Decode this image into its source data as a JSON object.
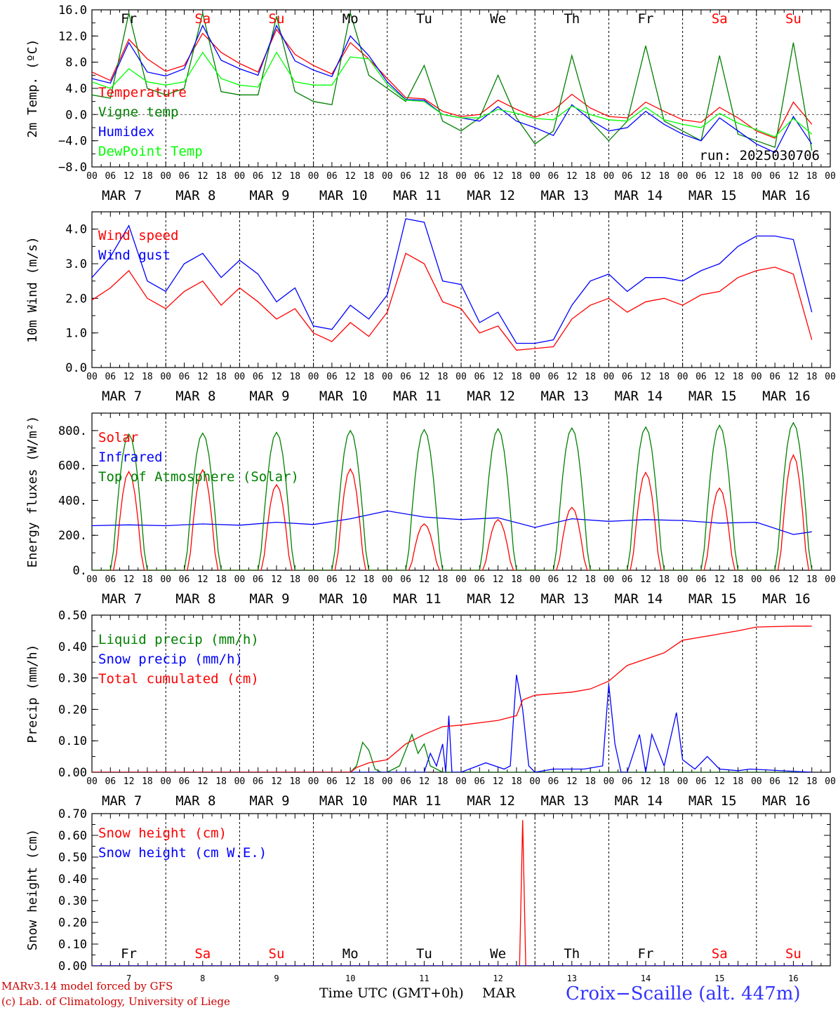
{
  "chart_data": [
    {
      "type": "line",
      "ylabel": "2m Temp. (ºC)",
      "ylim": [
        -8,
        16
      ],
      "yticks": [
        "16.0",
        "12.0",
        "8.0",
        "4.0",
        "0.0",
        "−4.0",
        "−8.0"
      ],
      "ytick_values": [
        16,
        12,
        8,
        4,
        0,
        -4,
        -8
      ],
      "zero_line": true,
      "annotation": "run: 2025030706",
      "legend_placement": "top-left",
      "x_hours": [
        0,
        6,
        12,
        18,
        24,
        30,
        36,
        42,
        48,
        54,
        60,
        66,
        72,
        78,
        84,
        90,
        96,
        102,
        108,
        114,
        120,
        126,
        132,
        138,
        144,
        150,
        156,
        162,
        168,
        174,
        180,
        186,
        192,
        198,
        204,
        210,
        216,
        222,
        228,
        234
      ],
      "series": [
        {
          "name": "Temperature",
          "color": "#ff0000",
          "values": [
            6.5,
            5.2,
            11.5,
            8.5,
            6.6,
            7.5,
            12.4,
            9.5,
            7.8,
            6.5,
            13.0,
            9.2,
            7.5,
            6.2,
            11.0,
            8.5,
            5.5,
            2.6,
            2.4,
            0.5,
            -0.3,
            0.0,
            2.2,
            0.8,
            -0.4,
            0.6,
            3.1,
            1.0,
            -0.3,
            -0.5,
            1.9,
            0.5,
            -0.8,
            -1.2,
            1.1,
            -0.5,
            -2.5,
            -3.6,
            1.9,
            -1.5
          ]
        },
        {
          "name": "Vigne temp",
          "color": "#008000",
          "values": [
            3.0,
            2.5,
            15.5,
            4.0,
            3.0,
            4.0,
            15.5,
            3.5,
            3.0,
            3.0,
            15.0,
            3.5,
            2.0,
            1.5,
            15.5,
            6.0,
            4.0,
            2.0,
            7.5,
            -1.0,
            -2.5,
            -0.5,
            6.0,
            -0.5,
            -4.5,
            -2.5,
            9.0,
            -1.0,
            -4.0,
            -1.0,
            10.5,
            -1.0,
            -2.5,
            -4.0,
            9.0,
            -3.0,
            -4.0,
            -5.0,
            11.0,
            -5.5
          ]
        },
        {
          "name": "Humidex",
          "color": "#0000ff",
          "values": [
            5.5,
            4.8,
            11.0,
            6.5,
            5.9,
            7.0,
            13.6,
            8.3,
            7.0,
            6.0,
            13.6,
            8.2,
            6.8,
            5.8,
            12.0,
            9.0,
            5.0,
            2.3,
            2.2,
            0.0,
            -0.5,
            -1.0,
            1.2,
            -1.0,
            -2.0,
            -3.2,
            1.5,
            -0.8,
            -2.5,
            -2.0,
            0.5,
            -1.5,
            -3.0,
            -4.0,
            -0.5,
            -2.5,
            -4.5,
            -5.8,
            -0.3,
            -4.5
          ]
        },
        {
          "name": "DewPoint Temp",
          "color": "#00ff00",
          "values": [
            5.0,
            4.0,
            7.0,
            5.0,
            4.5,
            5.0,
            9.5,
            5.5,
            4.5,
            4.2,
            9.5,
            5.0,
            4.5,
            4.5,
            8.8,
            8.5,
            4.6,
            2.2,
            2.0,
            0.0,
            -0.5,
            -0.5,
            0.8,
            0.2,
            -0.6,
            -0.8,
            1.3,
            0.0,
            -0.8,
            -1.0,
            1.1,
            -0.8,
            -1.5,
            -2.0,
            0.2,
            -1.3,
            -2.3,
            -3.4,
            -0.6,
            -3.0
          ]
        }
      ]
    },
    {
      "type": "line",
      "ylabel": "10m Wind (m/s)",
      "ylim": [
        0,
        4.5
      ],
      "yticks": [
        "4.0",
        "3.0",
        "2.0",
        "1.0",
        "0.0"
      ],
      "ytick_values": [
        4,
        3,
        2,
        1,
        0
      ],
      "legend_placement": "top-left",
      "x_hours": [
        0,
        6,
        12,
        18,
        24,
        30,
        36,
        42,
        48,
        54,
        60,
        66,
        72,
        78,
        84,
        90,
        96,
        102,
        108,
        114,
        120,
        126,
        132,
        138,
        144,
        150,
        156,
        162,
        168,
        174,
        180,
        186,
        192,
        198,
        204,
        210,
        216,
        222,
        228,
        234
      ],
      "series": [
        {
          "name": "Wind speed",
          "color": "#ff0000",
          "values": [
            1.95,
            2.3,
            2.8,
            2.0,
            1.7,
            2.2,
            2.5,
            1.8,
            2.3,
            1.9,
            1.4,
            1.7,
            1.0,
            0.75,
            1.3,
            0.9,
            1.6,
            3.3,
            3.0,
            1.9,
            1.7,
            1.0,
            1.2,
            0.5,
            0.55,
            0.6,
            1.4,
            1.8,
            2.0,
            1.6,
            1.9,
            2.0,
            1.8,
            2.1,
            2.2,
            2.6,
            2.8,
            2.9,
            2.7,
            0.8
          ]
        },
        {
          "name": "Wind gust",
          "color": "#0000ff",
          "values": [
            2.6,
            3.2,
            4.1,
            2.5,
            2.2,
            3.0,
            3.3,
            2.6,
            3.1,
            2.7,
            1.9,
            2.3,
            1.2,
            1.1,
            1.8,
            1.4,
            2.1,
            4.3,
            4.2,
            2.5,
            2.4,
            1.3,
            1.6,
            0.7,
            0.7,
            0.8,
            1.8,
            2.5,
            2.7,
            2.2,
            2.6,
            2.6,
            2.5,
            2.8,
            3.0,
            3.5,
            3.8,
            3.8,
            3.7,
            1.6
          ]
        }
      ]
    },
    {
      "type": "line",
      "ylabel": "Energy fluxes (W/m²)",
      "ylim": [
        0,
        900
      ],
      "yticks": [
        "800.",
        "600.",
        "400.",
        "200.",
        "0."
      ],
      "ytick_values": [
        800,
        600,
        400,
        200,
        0
      ],
      "legend_placement": "top-left",
      "series": [
        {
          "name": "Solar",
          "color": "#ff0000",
          "daily_peaks": [
            565,
            575,
            490,
            580,
            265,
            290,
            360,
            560,
            470,
            660
          ]
        },
        {
          "name": "Infrared",
          "color": "#0000ff",
          "x_hours": [
            0,
            12,
            24,
            36,
            48,
            60,
            72,
            84,
            96,
            108,
            120,
            132,
            144,
            156,
            168,
            180,
            192,
            204,
            216,
            228,
            234
          ],
          "values": [
            255,
            260,
            255,
            265,
            258,
            275,
            262,
            295,
            340,
            305,
            290,
            300,
            245,
            295,
            280,
            290,
            285,
            270,
            275,
            205,
            220
          ]
        },
        {
          "name": "Top of Atmosphere (Solar)",
          "color": "#008000",
          "daily_peaks": [
            780,
            785,
            790,
            800,
            805,
            810,
            815,
            820,
            830,
            845
          ]
        }
      ]
    },
    {
      "type": "line",
      "ylabel": "Precip (mm/h)",
      "ylim": [
        0,
        0.5
      ],
      "yticks": [
        "0.50",
        "0.40",
        "0.30",
        "0.20",
        "0.10",
        "0.00"
      ],
      "ytick_values": [
        0.5,
        0.4,
        0.3,
        0.2,
        0.1,
        0
      ],
      "legend_placement": "top-left",
      "series": [
        {
          "name": "Liquid precip (mm/h)",
          "color": "#008000",
          "x_hours": [
            0,
            84,
            86,
            88,
            90,
            92,
            94,
            96,
            100,
            104,
            106,
            108,
            110,
            114,
            120,
            234
          ],
          "values": [
            0,
            0,
            0.02,
            0.095,
            0.07,
            0.01,
            0,
            0,
            0.02,
            0.12,
            0.06,
            0.09,
            0.02,
            0,
            0,
            0
          ]
        },
        {
          "name": "Snow precip (mm/h)",
          "color": "#0000ff",
          "x_hours": [
            0,
            108,
            110,
            112,
            114,
            115,
            116,
            117,
            118,
            120,
            128,
            134,
            136,
            138,
            140,
            142,
            144,
            150,
            160,
            166,
            168,
            170,
            172,
            174,
            178,
            180,
            182,
            186,
            190,
            192,
            196,
            200,
            204,
            210,
            214,
            234
          ],
          "values": [
            0,
            0,
            0.06,
            0.02,
            0.09,
            0.0,
            0.18,
            0.0,
            0.0,
            0,
            0.03,
            0.01,
            0.02,
            0.31,
            0.2,
            0.02,
            0.0,
            0.01,
            0.01,
            0.02,
            0.28,
            0.09,
            0.0,
            0.0,
            0.12,
            0.0,
            0.12,
            0.02,
            0.19,
            0.04,
            0.01,
            0.05,
            0.01,
            0.005,
            0.01,
            0
          ]
        },
        {
          "name": "Total cumulated (cm)",
          "color": "#ff0000",
          "x_hours": [
            0,
            84,
            86,
            90,
            96,
            102,
            108,
            114,
            120,
            132,
            138,
            140,
            144,
            156,
            162,
            168,
            174,
            180,
            186,
            192,
            198,
            204,
            210,
            216,
            228,
            234
          ],
          "values": [
            0,
            0,
            0.015,
            0.03,
            0.04,
            0.09,
            0.12,
            0.145,
            0.15,
            0.165,
            0.18,
            0.23,
            0.245,
            0.255,
            0.265,
            0.29,
            0.34,
            0.36,
            0.38,
            0.42,
            0.43,
            0.44,
            0.45,
            0.462,
            0.465,
            0.465
          ]
        }
      ]
    },
    {
      "type": "line",
      "ylabel": "Snow height (cm)",
      "ylim": [
        0,
        0.7
      ],
      "yticks": [
        "0.70",
        "0.60",
        "0.50",
        "0.40",
        "0.30",
        "0.20",
        "0.10",
        "0.00"
      ],
      "ytick_values": [
        0.7,
        0.6,
        0.5,
        0.4,
        0.3,
        0.2,
        0.1,
        0
      ],
      "legend_placement": "top-left",
      "series": [
        {
          "name": "Snow height (cm)",
          "color": "#ff0000",
          "x_hours": [
            0,
            139,
            140,
            141,
            234
          ],
          "values": [
            0,
            0,
            0.67,
            0,
            0
          ]
        },
        {
          "name": "Snow height (cm W.E.)",
          "color": "#0000ff",
          "x_hours": [
            0,
            234
          ],
          "values": [
            0,
            0
          ]
        }
      ]
    }
  ],
  "axes": {
    "hour_ticks": [
      "00",
      "06",
      "12",
      "18"
    ],
    "last_tick": "00",
    "month": "MAR",
    "dates": [
      "7",
      "8",
      "9",
      "10",
      "11",
      "12",
      "13",
      "14",
      "15",
      "16"
    ],
    "days": [
      {
        "label": "Fr",
        "color": "#000000"
      },
      {
        "label": "Sa",
        "color": "#ff0000"
      },
      {
        "label": "Su",
        "color": "#ff0000"
      },
      {
        "label": "Mo",
        "color": "#000000"
      },
      {
        "label": "Tu",
        "color": "#000000"
      },
      {
        "label": "We",
        "color": "#000000"
      },
      {
        "label": "Th",
        "color": "#000000"
      },
      {
        "label": "Fr",
        "color": "#000000"
      },
      {
        "label": "Sa",
        "color": "#ff0000"
      },
      {
        "label": "Su",
        "color": "#ff0000"
      }
    ]
  },
  "footer": {
    "model_line": "MARv3.14 model forced by GFS",
    "copyright_line": "(c) Lab. of Climatology, University of Liege",
    "time_label": "Time UTC (GMT+0h)",
    "month_label": "MAR",
    "station": "Croix−Scaille (alt. 447m)"
  },
  "colors": {
    "red": "#ff0000",
    "blue": "#0000ff",
    "green": "#008000",
    "lightgreen": "#00ff00",
    "station": "#3333ff"
  }
}
